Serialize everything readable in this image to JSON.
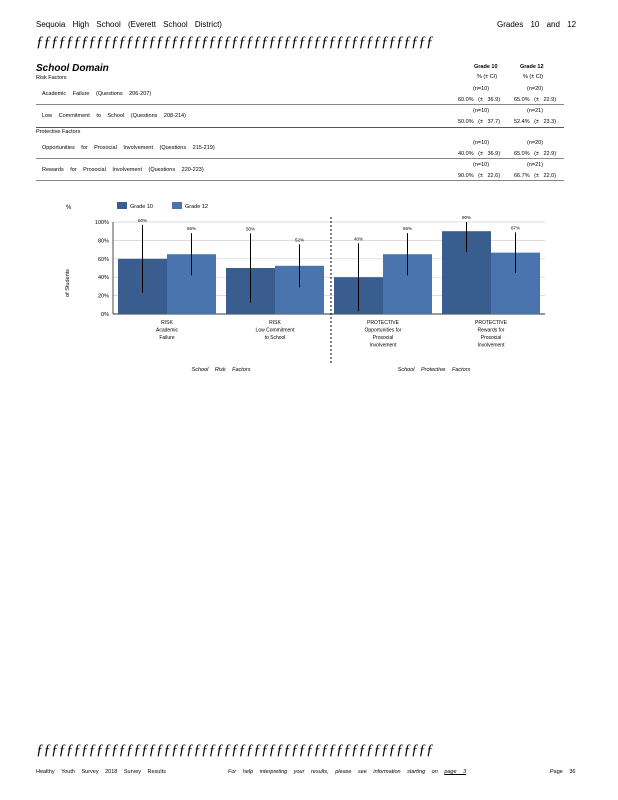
{
  "header": {
    "school": "Sequoia High School (Everett School District)",
    "grades": "Grades 10 and 12",
    "separator": "ƒƒƒƒƒƒƒƒƒƒƒƒƒƒƒƒƒƒƒƒƒƒƒƒƒƒƒƒƒƒƒƒƒƒƒƒƒƒƒƒƒƒƒƒƒƒƒƒƒƒƒƒƒ"
  },
  "domain": {
    "title": "School Domain",
    "col1_title": "Grade 10",
    "col1_sub": "% (± CI)",
    "col2_title": "Grade 12",
    "col2_sub": "% (± CI)",
    "risk_label": "Risk Factors",
    "protective_label": "Protective Factors",
    "rows": [
      {
        "label": "Academic Failure (Questions 206-207)",
        "n1": "(n=10)",
        "v1": "60.0% (± 36.9)",
        "n2": "(n=20)",
        "v2": "65.0% (± 22.9)"
      },
      {
        "label": "Low Commitment to School (Questions 208-214)",
        "n1": "(n=10)",
        "v1": "50.0% (± 37.7)",
        "n2": "(n=21)",
        "v2": "52.4% (± 23.3)"
      },
      {
        "label": "Opportunities for Prosocial Involvement (Questions 215-219)",
        "n1": "(n=10)",
        "v1": "40.0% (± 36.9)",
        "n2": "(n=20)",
        "v2": "65.0% (± 22.9)"
      },
      {
        "label": "Rewards for Prosocial Involvement (Questions 220-223)",
        "n1": "(n=10)",
        "v1": "90.0% (± 22.6)",
        "n2": "(n=21)",
        "v2": "66.7% (± 22.0)"
      }
    ]
  },
  "chart_data": {
    "type": "bar",
    "ylabel_top": "%",
    "ylabel": "of Students",
    "ylim": [
      0,
      100
    ],
    "yticks": [
      "0%",
      "20%",
      "40%",
      "60%",
      "80%",
      "100%"
    ],
    "categories": [
      [
        "RISK",
        "Academic",
        "Failure"
      ],
      [
        "RISK",
        "Low Commitment",
        "to School"
      ],
      [
        "PROTECTIVE",
        "Opportunities for",
        "Prosocial",
        "Involvement"
      ],
      [
        "PROTECTIVE",
        "Rewards for",
        "Prosocial",
        "Involvement"
      ]
    ],
    "series": [
      {
        "name": "Grade 10",
        "color": "#3a5d8f",
        "values": [
          60,
          50,
          40,
          90
        ],
        "ci": [
          36.9,
          37.7,
          36.9,
          22.6
        ],
        "labels": [
          "60%",
          "50%",
          "40%",
          "90%"
        ]
      },
      {
        "name": "Grade 12",
        "color": "#4a74ad",
        "values": [
          65,
          52.4,
          65,
          66.7
        ],
        "ci": [
          22.9,
          23.3,
          22.9,
          22.0
        ],
        "labels": [
          "65%",
          "52%",
          "65%",
          "67%"
        ]
      }
    ],
    "group_labels": [
      "School Risk Factors",
      "School Protective Factors"
    ],
    "grid": true,
    "legend": "top"
  },
  "footer": {
    "separator": "ƒƒƒƒƒƒƒƒƒƒƒƒƒƒƒƒƒƒƒƒƒƒƒƒƒƒƒƒƒƒƒƒƒƒƒƒƒƒƒƒƒƒƒƒƒƒƒƒƒƒƒƒƒ",
    "left": "Healthy Youth Survey 2018 Survey Results",
    "middle_prefix": "For help interpreting your results, please see information starting on",
    "middle_link": "page 3",
    "page": "Page 36"
  }
}
